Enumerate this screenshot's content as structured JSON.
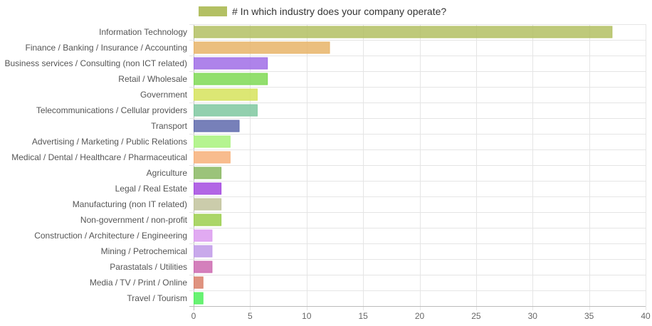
{
  "chart_data": {
    "type": "bar",
    "orientation": "horizontal",
    "legend": {
      "position": "top",
      "label": "# In which industry does your company operate?",
      "color": "#b3c063"
    },
    "categories": [
      "Information Technology",
      "Finance / Banking / Insurance / Accounting",
      "Business services / Consulting (non ICT related)",
      "Retail / Wholesale",
      "Government",
      "Telecommunications / Cellular providers",
      "Transport",
      "Advertising / Marketing / Public Relations",
      "Medical / Dental / Healthcare / Pharmaceutical",
      "Agriculture",
      "Legal / Real Estate",
      "Manufacturing (non IT related)",
      "Non-government / non-profit",
      "Construction / Architecture / Engineering",
      "Mining / Petrochemical",
      "Parastatals / Utilities",
      "Media / TV / Print / Online",
      "Travel / Tourism"
    ],
    "series": [
      {
        "name": "# In which industry does your company operate?",
        "values": [
          37,
          12,
          6.5,
          6.5,
          5.6,
          5.6,
          4,
          3.2,
          3.2,
          2.4,
          2.4,
          2.4,
          2.4,
          1.6,
          1.6,
          1.6,
          0.8,
          0.8
        ]
      }
    ],
    "colors": [
      "#b3c063",
      "#e8b468",
      "#a06de6",
      "#7fd955",
      "#d6e35c",
      "#7fc8a0",
      "#5f6aad",
      "#a8f27d",
      "#f7b07a",
      "#8ab863",
      "#a44ae0",
      "#c2c39c",
      "#9ccf4e",
      "#dc9bf0",
      "#c09ae8",
      "#cc6ab0",
      "#d9806a",
      "#4df05a"
    ],
    "x_ticks": [
      "0",
      "5",
      "10",
      "15",
      "20",
      "25",
      "30",
      "35",
      "40"
    ],
    "xlim": [
      0,
      40
    ],
    "grid": true
  }
}
